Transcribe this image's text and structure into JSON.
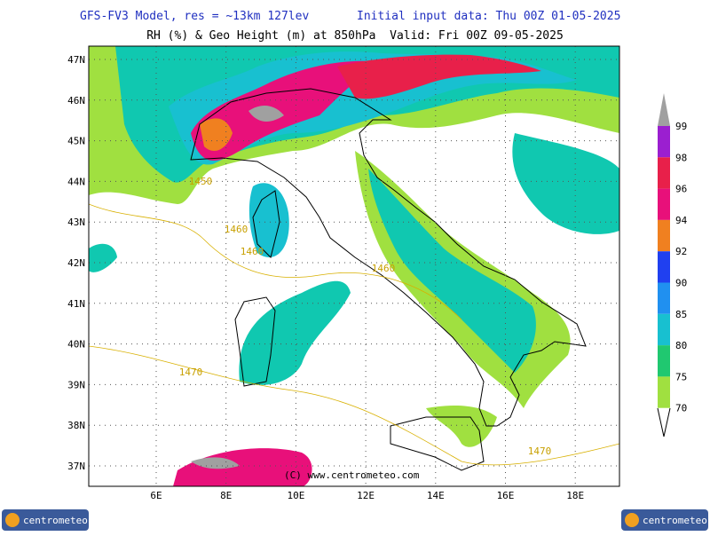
{
  "header": {
    "model": "GFS-FV3 Model, res = ~13km 127lev",
    "init": "Initial input data: Thu 00Z 01-05-2025",
    "subtitle": "RH (%) & Geo Height (m) at 850hPa  Valid: Fri 00Z 09-05-2025"
  },
  "map": {
    "lat_labels": [
      "47N",
      "46N",
      "45N",
      "44N",
      "43N",
      "42N",
      "41N",
      "40N",
      "39N",
      "38N",
      "37N"
    ],
    "lon_labels": [
      "6E",
      "8E",
      "10E",
      "12E",
      "14E",
      "16E",
      "18E"
    ],
    "contour_labels": [
      "1450",
      "1460",
      "1460",
      "1460",
      "1470",
      "1470"
    ],
    "copyright": "(C) www.centrometeo.com"
  },
  "colorbar": {
    "ticks": [
      99,
      98,
      96,
      94,
      92,
      90,
      85,
      80,
      75,
      70
    ]
  },
  "logos": [
    "centrometeo",
    "centrometeo"
  ]
}
